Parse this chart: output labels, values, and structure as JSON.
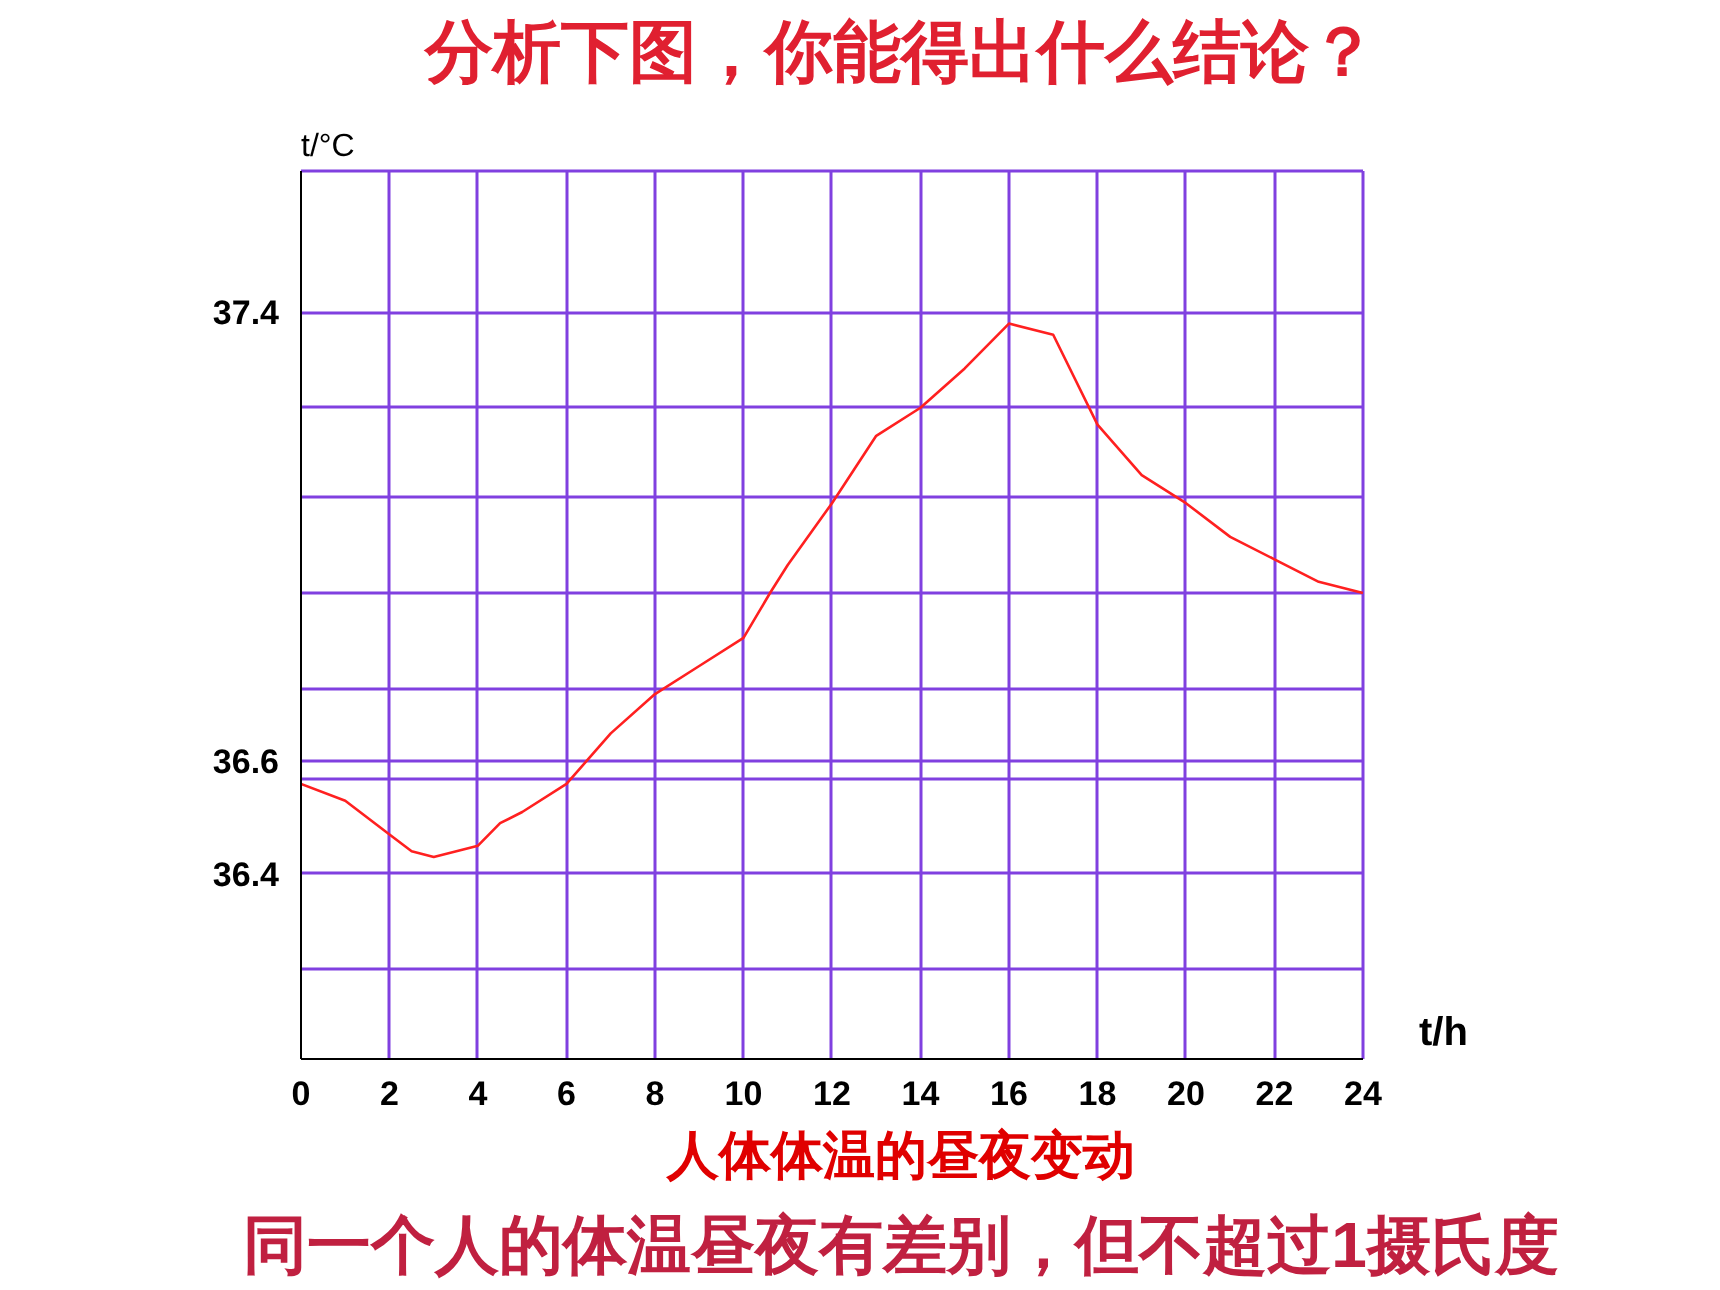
{
  "chart_data": {
    "type": "line",
    "title": "分析下图，你能得出什么结论？",
    "xlabel": "t/h",
    "ylabel": "t/°C",
    "x": [
      0,
      1,
      2,
      2.5,
      3,
      4,
      4.5,
      5,
      6,
      7,
      8,
      9,
      10,
      10.6,
      11,
      12,
      13,
      14,
      15,
      16,
      17,
      18,
      19,
      20,
      21,
      22,
      23,
      24
    ],
    "series": [
      {
        "color": "#ff2020",
        "values": [
          36.56,
          36.53,
          36.47,
          36.44,
          36.43,
          36.45,
          36.49,
          36.51,
          36.56,
          36.65,
          36.72,
          36.77,
          36.82,
          36.9,
          36.95,
          37.06,
          37.18,
          37.23,
          37.3,
          37.38,
          37.36,
          37.2,
          37.11,
          37.06,
          37.0,
          36.96,
          36.92,
          36.9
        ]
      }
    ],
    "xlim": [
      0,
      24
    ],
    "ylim": [
      36.07,
      37.65
    ],
    "xticks": [
      0,
      2,
      4,
      6,
      8,
      10,
      12,
      14,
      16,
      18,
      20,
      22,
      24
    ],
    "yticks": [
      {
        "value": 36.23,
        "label": null
      },
      36.4,
      {
        "value": 36.57,
        "label": null
      },
      36.6,
      {
        "value": 36.73,
        "label": null
      },
      {
        "value": 36.9,
        "label": null
      },
      {
        "value": 37.07,
        "label": null
      },
      {
        "value": 37.23,
        "label": null
      },
      37.4,
      {
        "value": 37.65,
        "label": null
      }
    ],
    "grid": true,
    "line_style": "solid",
    "annotations": [
      "人体体温的昼夜变动",
      "同一个人的体温昼夜有差别，但不超过1摄氏度"
    ]
  }
}
